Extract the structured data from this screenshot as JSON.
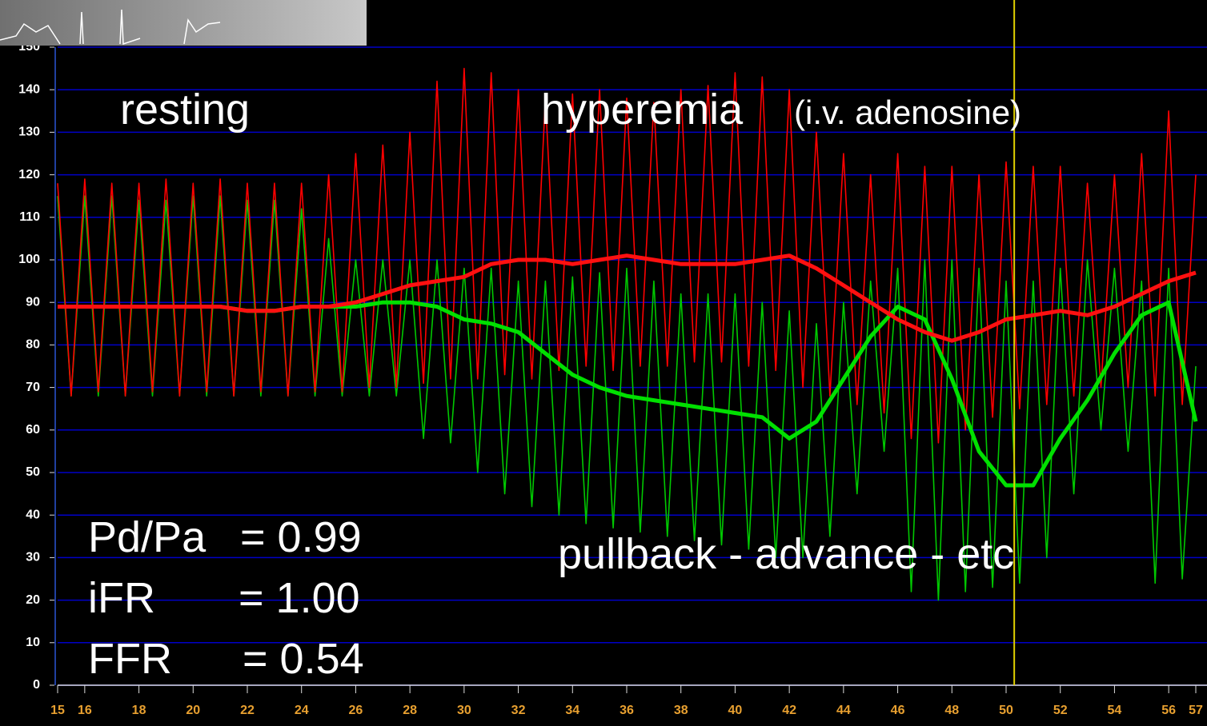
{
  "chart_data": [
    {
      "type": "line",
      "labels": [
        "resting",
        "hyperemia",
        "(i.v. adenosine)",
        "pullback - advance - etc"
      ],
      "indices": [
        {
          "name": "Pd/Pa",
          "value": "= 0.99"
        },
        {
          "name": "iFR",
          "value": "= 1.00"
        },
        {
          "name": "FFR",
          "value": "= 0.54"
        }
      ],
      "xlim": [
        15,
        57
      ],
      "xticks": [
        15,
        16,
        18,
        20,
        22,
        24,
        26,
        28,
        30,
        32,
        34,
        36,
        38,
        40,
        42,
        44,
        46,
        48,
        50,
        52,
        54,
        56,
        57
      ],
      "ylim": [
        0,
        150
      ],
      "yticks": [
        0,
        10,
        20,
        30,
        40,
        50,
        60,
        70,
        80,
        90,
        100,
        110,
        120,
        130,
        140,
        150
      ],
      "grid": true,
      "grid_color": "#0000c8",
      "cursor_x": 50.3,
      "cursor_color": "#e0d000",
      "x": [
        15,
        15.5,
        16,
        16.5,
        17,
        17.5,
        18,
        18.5,
        19,
        19.5,
        20,
        20.5,
        21,
        21.5,
        22,
        22.5,
        23,
        23.5,
        24,
        24.5,
        25,
        25.5,
        26,
        26.5,
        27,
        27.5,
        28,
        28.5,
        29,
        29.5,
        30,
        30.5,
        31,
        31.5,
        32,
        32.5,
        33,
        33.5,
        34,
        34.5,
        35,
        35.5,
        36,
        36.5,
        37,
        37.5,
        38,
        38.5,
        39,
        39.5,
        40,
        40.5,
        41,
        41.5,
        42,
        42.5,
        43,
        43.5,
        44,
        44.5,
        45,
        45.5,
        46,
        46.5,
        47,
        47.5,
        48,
        48.5,
        49,
        49.5,
        50,
        50.5,
        51,
        51.5,
        52,
        52.5,
        53,
        53.5,
        54,
        54.5,
        55,
        55.5,
        56,
        56.5,
        57
      ],
      "series": [
        {
          "color": "#00c800",
          "width": 1.6,
          "values": [
            115,
            68,
            115,
            68,
            115,
            68,
            114,
            68,
            114,
            68,
            115,
            68,
            115,
            68,
            114,
            68,
            114,
            68,
            112,
            68,
            105,
            68,
            100,
            68,
            100,
            68,
            100,
            58,
            100,
            57,
            98,
            50,
            98,
            45,
            95,
            42,
            95,
            40,
            96,
            38,
            97,
            37,
            98,
            36,
            95,
            35,
            92,
            34,
            92,
            33,
            92,
            32,
            90,
            30,
            88,
            30,
            85,
            35,
            90,
            45,
            95,
            55,
            98,
            22,
            100,
            20,
            100,
            22,
            98,
            23,
            95,
            24,
            95,
            30,
            98,
            45,
            100,
            60,
            98,
            55,
            95,
            24,
            98,
            25,
            75
          ]
        },
        {
          "color": "#ff0000",
          "width": 1.6,
          "values": [
            118,
            68,
            119,
            69,
            118,
            68,
            118,
            69,
            119,
            68,
            118,
            69,
            119,
            68,
            118,
            69,
            118,
            68,
            118,
            69,
            120,
            69,
            125,
            70,
            127,
            70,
            130,
            71,
            142,
            72,
            145,
            72,
            144,
            73,
            140,
            72,
            138,
            74,
            139,
            75,
            140,
            74,
            138,
            75,
            137,
            75,
            140,
            76,
            141,
            76,
            144,
            75,
            143,
            74,
            140,
            70,
            130,
            68,
            125,
            66,
            120,
            64,
            125,
            58,
            122,
            57,
            122,
            60,
            120,
            63,
            123,
            65,
            122,
            66,
            122,
            68,
            118,
            70,
            120,
            70,
            125,
            68,
            135,
            66,
            120
          ]
        }
      ]
    },
    {
      "type": "line",
      "x": [
        15,
        16,
        17,
        18,
        19,
        20,
        21,
        22,
        23,
        24,
        25,
        26,
        27,
        28,
        29,
        30,
        31,
        32,
        33,
        34,
        35,
        36,
        37,
        38,
        39,
        40,
        41,
        42,
        43,
        44,
        45,
        46,
        47,
        48,
        49,
        50,
        51,
        52,
        53,
        54,
        55,
        56,
        57
      ],
      "series": [
        {
          "color": "#00e000",
          "width": 5,
          "values": [
            89,
            89,
            89,
            89,
            89,
            89,
            89,
            88,
            88,
            89,
            89,
            89,
            90,
            90,
            89,
            86,
            85,
            83,
            78,
            73,
            70,
            68,
            67,
            66,
            65,
            64,
            63,
            58,
            62,
            72,
            82,
            89,
            86,
            72,
            55,
            47,
            47,
            58,
            67,
            78,
            87,
            90,
            62
          ]
        },
        {
          "color": "#ff1010",
          "width": 5,
          "values": [
            89,
            89,
            89,
            89,
            89,
            89,
            89,
            88,
            88,
            89,
            89,
            90,
            92,
            94,
            95,
            96,
            99,
            100,
            100,
            99,
            100,
            101,
            100,
            99,
            99,
            99,
            100,
            101,
            98,
            94,
            90,
            86,
            83,
            81,
            83,
            86,
            87,
            88,
            87,
            89,
            92,
            95,
            97
          ]
        }
      ]
    }
  ]
}
